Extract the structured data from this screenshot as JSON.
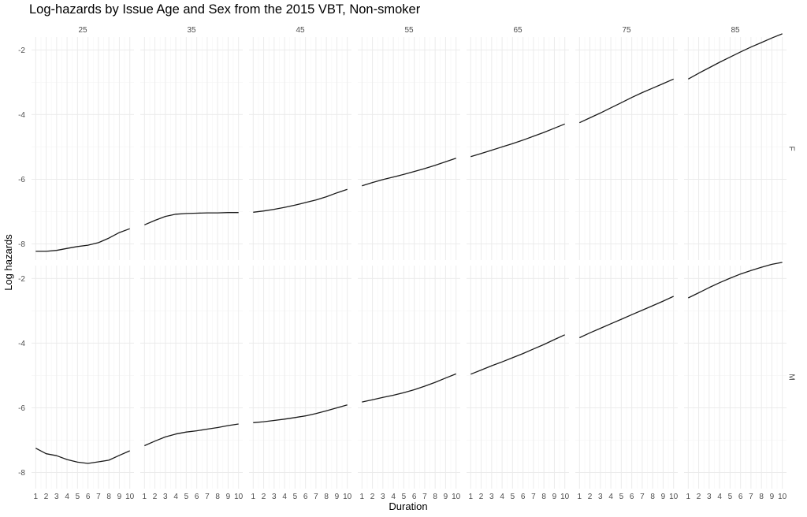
{
  "chart_data": {
    "type": "line",
    "title": "Log-hazards by Issue Age and Sex from the 2015 VBT, Non-smoker",
    "xlabel": "Duration",
    "ylabel": "Log hazards",
    "facet_cols": [
      "25",
      "35",
      "45",
      "55",
      "65",
      "75",
      "85"
    ],
    "facet_rows": [
      "F",
      "M"
    ],
    "x": [
      1,
      2,
      3,
      4,
      5,
      6,
      7,
      8,
      9,
      10
    ],
    "x_tick_labels": [
      "1",
      "2",
      "3",
      "4",
      "5",
      "6",
      "7",
      "8",
      "9",
      "10"
    ],
    "y_tick_labels": [
      "-2",
      "-4",
      "-6",
      "-8"
    ],
    "y_ticks": [
      -2,
      -4,
      -6,
      -8
    ],
    "ylim": [
      -8.5,
      -1.6
    ],
    "xlim": [
      0.6,
      10.4
    ],
    "grid": true,
    "series": [
      {
        "row": "F",
        "col": "25",
        "values": [
          -8.23,
          -8.23,
          -8.2,
          -8.14,
          -8.08,
          -8.04,
          -7.96,
          -7.82,
          -7.65,
          -7.53
        ]
      },
      {
        "row": "F",
        "col": "35",
        "values": [
          -7.41,
          -7.27,
          -7.15,
          -7.08,
          -7.06,
          -7.05,
          -7.04,
          -7.04,
          -7.03,
          -7.03
        ]
      },
      {
        "row": "F",
        "col": "45",
        "values": [
          -7.02,
          -6.98,
          -6.93,
          -6.87,
          -6.8,
          -6.72,
          -6.64,
          -6.54,
          -6.42,
          -6.31
        ]
      },
      {
        "row": "F",
        "col": "55",
        "values": [
          -6.2,
          -6.1,
          -6.01,
          -5.93,
          -5.85,
          -5.76,
          -5.67,
          -5.57,
          -5.46,
          -5.35
        ]
      },
      {
        "row": "F",
        "col": "65",
        "values": [
          -5.3,
          -5.2,
          -5.1,
          -5.0,
          -4.9,
          -4.79,
          -4.67,
          -4.55,
          -4.42,
          -4.29
        ]
      },
      {
        "row": "F",
        "col": "75",
        "values": [
          -4.25,
          -4.1,
          -3.95,
          -3.79,
          -3.63,
          -3.47,
          -3.32,
          -3.18,
          -3.04,
          -2.9
        ]
      },
      {
        "row": "F",
        "col": "85",
        "values": [
          -2.9,
          -2.72,
          -2.55,
          -2.38,
          -2.22,
          -2.06,
          -1.91,
          -1.77,
          -1.63,
          -1.5
        ]
      },
      {
        "row": "M",
        "col": "25",
        "values": [
          -7.25,
          -7.42,
          -7.48,
          -7.6,
          -7.68,
          -7.72,
          -7.67,
          -7.62,
          -7.47,
          -7.33
        ]
      },
      {
        "row": "M",
        "col": "35",
        "values": [
          -7.17,
          -7.03,
          -6.9,
          -6.81,
          -6.75,
          -6.71,
          -6.66,
          -6.61,
          -6.55,
          -6.5
        ]
      },
      {
        "row": "M",
        "col": "45",
        "values": [
          -6.46,
          -6.43,
          -6.39,
          -6.35,
          -6.3,
          -6.25,
          -6.18,
          -6.09,
          -6.0,
          -5.91
        ]
      },
      {
        "row": "M",
        "col": "55",
        "values": [
          -5.82,
          -5.75,
          -5.68,
          -5.61,
          -5.53,
          -5.44,
          -5.33,
          -5.21,
          -5.08,
          -4.95
        ]
      },
      {
        "row": "M",
        "col": "65",
        "values": [
          -4.96,
          -4.83,
          -4.7,
          -4.58,
          -4.45,
          -4.32,
          -4.18,
          -4.04,
          -3.89,
          -3.74
        ]
      },
      {
        "row": "M",
        "col": "75",
        "values": [
          -3.83,
          -3.68,
          -3.54,
          -3.4,
          -3.26,
          -3.12,
          -2.98,
          -2.84,
          -2.7,
          -2.55
        ]
      },
      {
        "row": "M",
        "col": "85",
        "values": [
          -2.6,
          -2.44,
          -2.28,
          -2.13,
          -1.99,
          -1.86,
          -1.75,
          -1.65,
          -1.56,
          -1.5
        ]
      }
    ],
    "colors": {
      "line": "#1a1a1a",
      "grid_major": "#ebebeb",
      "grid_minor": "#f5f5f5",
      "text": "#4d4d4d"
    }
  }
}
